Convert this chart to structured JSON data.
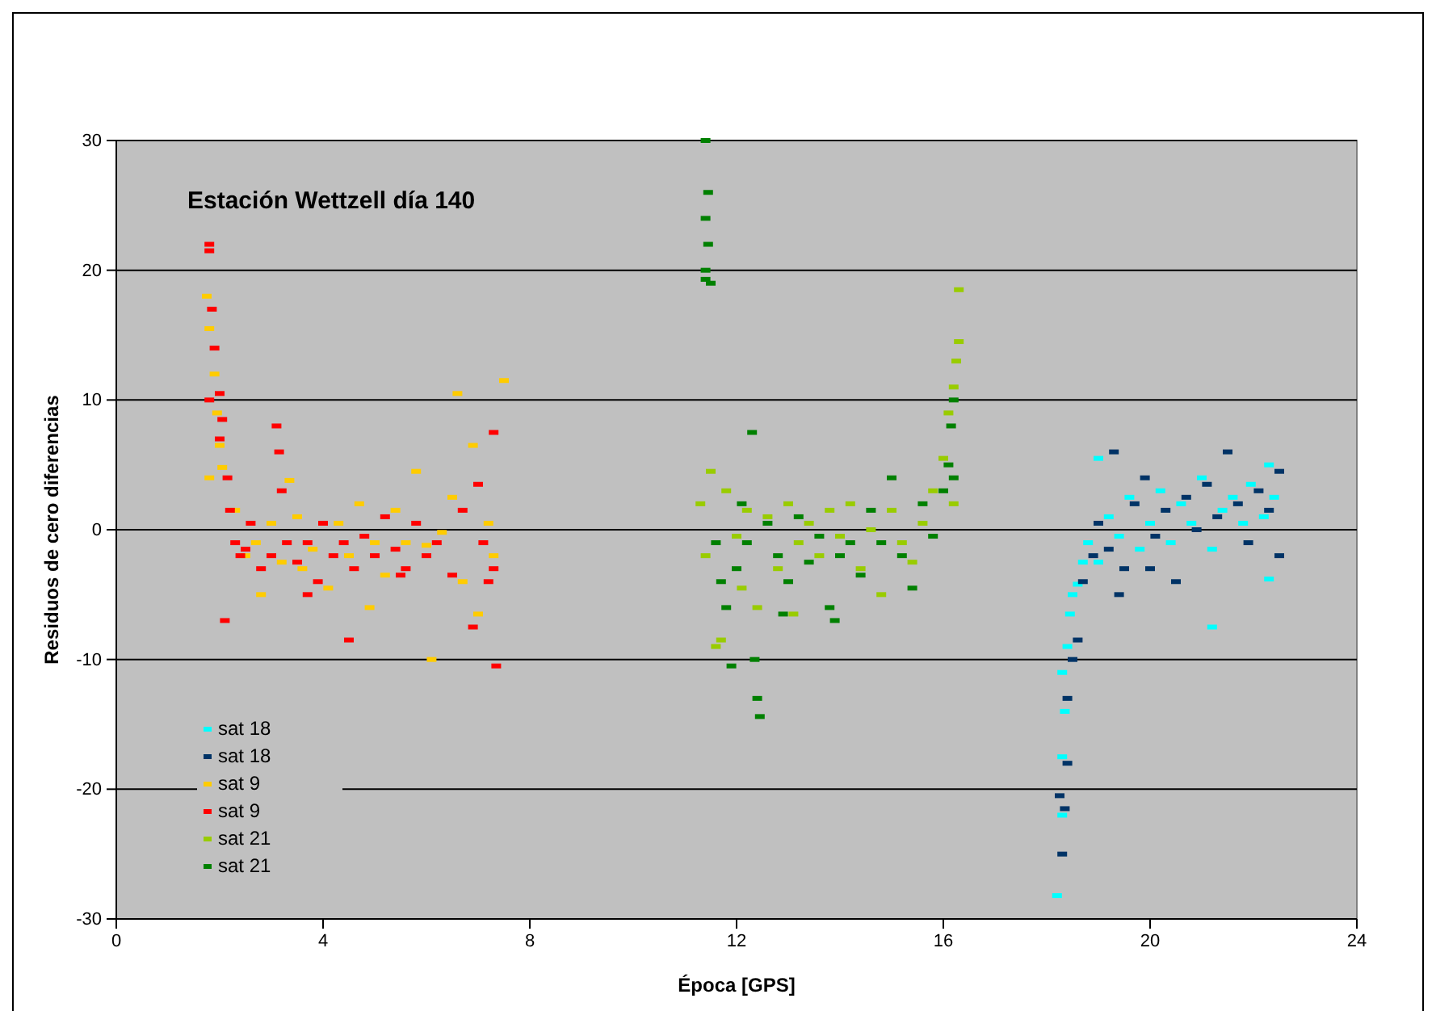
{
  "chart_data": {
    "type": "scatter",
    "title": "Estación Wettzell día 140",
    "xlabel": "Época [GPS]",
    "ylabel": "Residuos de cero diferencias",
    "xlim": [
      0,
      24
    ],
    "xticks": [
      0,
      4,
      8,
      12,
      16,
      20,
      24
    ],
    "ylim": [
      -30,
      30
    ],
    "yticks": [
      -30,
      -20,
      -10,
      0,
      10,
      20,
      30
    ],
    "grid": "y",
    "legend": "bottom left",
    "marker": "square",
    "series": [
      {
        "name": "sat 18",
        "color": "#00ffff",
        "x": [
          18.2,
          18.3,
          18.3,
          18.35,
          18.3,
          18.4,
          18.45,
          18.5,
          18.6,
          18.7,
          18.8,
          19.0,
          19.2,
          19.4,
          19.6,
          19.8,
          20.0,
          20.2,
          20.4,
          20.6,
          20.8,
          21.0,
          21.2,
          21.4,
          21.6,
          21.8,
          21.95,
          22.2,
          22.4,
          22.3,
          21.2,
          19.0,
          22.3
        ],
        "values": [
          -28.2,
          -22,
          -17.5,
          -14,
          -11,
          -9,
          -6.5,
          -5,
          -4.2,
          -2.5,
          -1,
          -2.5,
          1,
          -0.5,
          2.5,
          -1.5,
          0.5,
          3,
          -1,
          2,
          0.5,
          4,
          -1.5,
          1.5,
          2.5,
          0.5,
          3.5,
          1,
          2.5,
          -3.8,
          -7.5,
          5.5,
          5
        ]
      },
      {
        "name": "sat 18",
        "color": "#003366",
        "x": [
          18.25,
          18.3,
          18.35,
          18.4,
          18.4,
          18.5,
          18.6,
          18.7,
          18.9,
          19.0,
          19.2,
          19.3,
          19.5,
          19.7,
          19.9,
          20.1,
          20.3,
          20.5,
          20.7,
          20.9,
          21.1,
          21.3,
          21.5,
          21.7,
          21.9,
          22.1,
          22.3,
          22.5,
          22.5,
          19.4,
          20.0
        ],
        "values": [
          -20.5,
          -25,
          -21.5,
          -18,
          -13,
          -10,
          -8.5,
          -4,
          -2,
          0.5,
          -1.5,
          6,
          -3,
          2,
          4,
          -0.5,
          1.5,
          -4,
          2.5,
          0,
          3.5,
          1,
          6,
          2,
          -1,
          3,
          1.5,
          -2,
          4.5,
          -5,
          -3
        ]
      },
      {
        "name": "sat 9",
        "color": "#ffcc00",
        "x": [
          1.75,
          1.8,
          1.9,
          1.95,
          2.0,
          2.05,
          1.8,
          2.3,
          2.5,
          2.7,
          3.0,
          3.2,
          3.5,
          3.6,
          3.8,
          4.1,
          4.3,
          4.5,
          4.7,
          5.0,
          5.2,
          5.4,
          5.6,
          5.8,
          6.0,
          6.1,
          6.3,
          6.5,
          6.6,
          6.7,
          6.9,
          7.0,
          7.2,
          7.5,
          7.3,
          2.8,
          4.9,
          3.35
        ],
        "values": [
          18,
          15.5,
          12,
          9,
          6.5,
          4.8,
          4,
          1.5,
          -2,
          -1,
          0.5,
          -2.5,
          1,
          -3,
          -1.5,
          -4.5,
          0.5,
          -2,
          2,
          -1,
          -3.5,
          1.5,
          -1,
          4.5,
          -1.2,
          -10,
          -0.2,
          2.5,
          10.5,
          -4,
          6.5,
          -6.5,
          0.5,
          11.5,
          -2,
          -5,
          -6,
          3.8
        ]
      },
      {
        "name": "sat 9",
        "color": "#ff0000",
        "x": [
          1.8,
          1.8,
          1.85,
          1.9,
          1.8,
          2.0,
          2.05,
          2.0,
          2.15,
          2.2,
          2.3,
          2.4,
          2.5,
          2.6,
          2.8,
          3.0,
          3.1,
          3.15,
          3.2,
          3.3,
          3.5,
          3.7,
          3.9,
          4.0,
          4.2,
          4.4,
          4.6,
          4.8,
          5.0,
          5.2,
          5.4,
          5.6,
          5.8,
          6.0,
          6.2,
          6.5,
          6.7,
          6.9,
          7.0,
          7.1,
          7.2,
          7.3,
          7.35,
          2.1,
          3.7,
          4.5,
          5.5,
          7.3
        ],
        "values": [
          22,
          21.5,
          17,
          14,
          10,
          10.5,
          8.5,
          7,
          4,
          1.5,
          -1,
          -2,
          -1.5,
          0.5,
          -3,
          -2,
          8,
          6,
          3,
          -1,
          -2.5,
          -1,
          -4,
          0.5,
          -2,
          -1,
          -3,
          -0.5,
          -2,
          1,
          -1.5,
          -3,
          0.5,
          -2,
          -1,
          -3.5,
          1.5,
          -7.5,
          3.5,
          -1,
          -4,
          7.5,
          -10.5,
          -7,
          -5,
          -8.5,
          -3.5,
          -3
        ]
      },
      {
        "name": "sat 21",
        "color": "#99cc00",
        "x": [
          11.3,
          11.4,
          11.5,
          11.6,
          11.7,
          11.8,
          12.0,
          12.2,
          12.4,
          12.6,
          12.8,
          13.0,
          13.2,
          13.4,
          13.6,
          13.8,
          14.0,
          14.2,
          14.4,
          14.6,
          14.8,
          15.0,
          15.2,
          15.4,
          15.6,
          15.8,
          16.0,
          16.1,
          16.2,
          16.25,
          16.3,
          16.3,
          16.2,
          12.1,
          13.1
        ],
        "values": [
          2,
          -2,
          4.5,
          -9,
          -8.5,
          3,
          -0.5,
          1.5,
          -6,
          1,
          -3,
          2,
          -1,
          0.5,
          -2,
          1.5,
          -0.5,
          2,
          -3,
          0,
          -5,
          1.5,
          -1,
          -2.5,
          0.5,
          3,
          5.5,
          9,
          11,
          13,
          14.5,
          18.5,
          2,
          -4.5,
          -6.5
        ]
      },
      {
        "name": "sat 21",
        "color": "#008000",
        "x": [
          11.4,
          11.45,
          11.4,
          11.45,
          11.4,
          11.4,
          11.5,
          11.6,
          11.7,
          11.8,
          11.9,
          12.0,
          12.1,
          12.2,
          12.3,
          12.35,
          12.4,
          12.45,
          12.6,
          12.8,
          13.0,
          13.2,
          13.4,
          13.6,
          13.8,
          14.0,
          14.2,
          14.4,
          14.6,
          14.8,
          15.0,
          15.2,
          15.4,
          15.6,
          15.8,
          16.0,
          16.1,
          16.2,
          16.15,
          16.2,
          13.9,
          12.9
        ],
        "values": [
          30,
          26,
          24,
          22,
          20,
          19.3,
          19,
          -1,
          -4,
          -6,
          -10.5,
          -3,
          2,
          -1,
          7.5,
          -10,
          -13,
          -14.4,
          0.5,
          -2,
          -4,
          1,
          -2.5,
          -0.5,
          -6,
          -2,
          -1,
          -3.5,
          1.5,
          -1,
          4,
          -2,
          -4.5,
          2,
          -0.5,
          3,
          5,
          10,
          8,
          4,
          -7,
          -6.5
        ]
      }
    ]
  }
}
